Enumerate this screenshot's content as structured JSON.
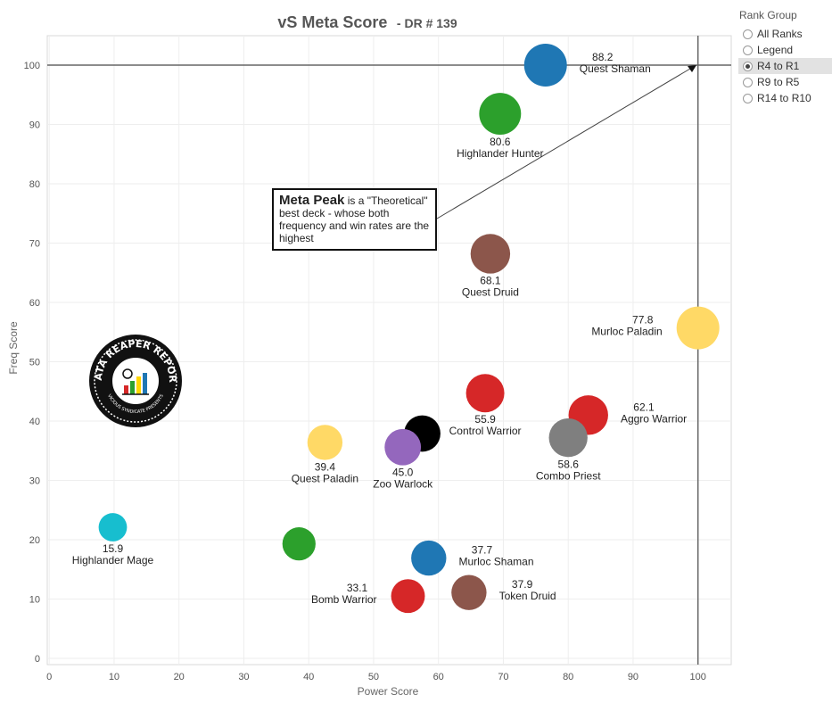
{
  "chart_data": {
    "type": "scatter",
    "title": "vS Meta Score",
    "subtitle": "- DR # 139",
    "xlabel": "Power Score",
    "ylabel": "Freq Score",
    "xlim": [
      0,
      105
    ],
    "ylim": [
      -1,
      105
    ],
    "x_ticks": [
      0,
      10,
      20,
      30,
      40,
      50,
      60,
      70,
      80,
      90,
      100
    ],
    "y_ticks": [
      0,
      10,
      20,
      30,
      40,
      50,
      60,
      70,
      80,
      90,
      100
    ],
    "grid": true,
    "reference_lines": {
      "x": 100,
      "y": 100
    },
    "points": [
      {
        "name": "Quest Shaman",
        "score": "88.2",
        "x": 76.5,
        "y": 100,
        "size": 1.0,
        "color": "#1f77b4",
        "label_pos": "right"
      },
      {
        "name": "Highlander Hunter",
        "score": "80.6",
        "x": 69.5,
        "y": 91.8,
        "size": 0.97,
        "color": "#2ca02c",
        "label_pos": "below"
      },
      {
        "name": "Quest Druid",
        "score": "68.1",
        "x": 68.0,
        "y": 68.2,
        "size": 0.9,
        "color": "#8c564b",
        "label_pos": "below"
      },
      {
        "name": "Murloc Paladin",
        "score": "77.8",
        "x": 100,
        "y": 55.7,
        "size": 1.0,
        "color": "#ffd966",
        "label_pos": "left"
      },
      {
        "name": "Control Warrior",
        "score": "55.9",
        "x": 67.2,
        "y": 44.7,
        "size": 0.86,
        "color": "#d62728",
        "label_pos": "below"
      },
      {
        "name": "Aggro Warrior",
        "score": "62.1",
        "x": 83.1,
        "y": 41.0,
        "size": 0.9,
        "color": "#d62728",
        "label_pos": "right"
      },
      {
        "name": "Combo Priest",
        "score": "58.6",
        "x": 80.0,
        "y": 37.2,
        "size": 0.87,
        "color": "#7f7f7f",
        "label_pos": "below"
      },
      {
        "name": "",
        "score": "",
        "x": 57.5,
        "y": 37.9,
        "size": 0.8,
        "color": "#000000",
        "label_pos": "none"
      },
      {
        "name": "Zoo Warlock",
        "score": "45.0",
        "x": 54.5,
        "y": 35.6,
        "size": 0.8,
        "color": "#9467bd",
        "label_pos": "below"
      },
      {
        "name": "Quest Paladin",
        "score": "39.4",
        "x": 42.5,
        "y": 36.4,
        "size": 0.76,
        "color": "#ffd966",
        "label_pos": "below"
      },
      {
        "name": "Highlander Mage",
        "score": "15.9",
        "x": 9.8,
        "y": 22.1,
        "size": 0.55,
        "color": "#17becf",
        "label_pos": "below"
      },
      {
        "name": "",
        "score": "",
        "x": 38.5,
        "y": 19.3,
        "size": 0.7,
        "color": "#2ca02c",
        "label_pos": "none"
      },
      {
        "name": "Murloc Shaman",
        "score": "37.7",
        "x": 58.5,
        "y": 16.9,
        "size": 0.76,
        "color": "#1f77b4",
        "label_pos": "right"
      },
      {
        "name": "Token Druid",
        "score": "37.9",
        "x": 64.7,
        "y": 11.1,
        "size": 0.76,
        "color": "#8c564b",
        "label_pos": "right"
      },
      {
        "name": "Bomb Warrior",
        "score": "33.1",
        "x": 55.3,
        "y": 10.5,
        "size": 0.72,
        "color": "#d62728",
        "label_pos": "left"
      }
    ]
  },
  "annotation": {
    "heading": "Meta Peak",
    "text": " is a \"Theoretical\" best deck - whose both frequency and win rates are the highest"
  },
  "legend": {
    "title": "Rank Group",
    "items": [
      {
        "label": "All Ranks",
        "selected": false
      },
      {
        "label": "Legend",
        "selected": false
      },
      {
        "label": "R4 to R1",
        "selected": true
      },
      {
        "label": "R9 to R5",
        "selected": false
      },
      {
        "label": "R14 to R10",
        "selected": false
      }
    ]
  },
  "logo": {
    "text_top": "DATA REAPER REPORT",
    "text_bottom": "VICIOUS SYNDICATE PRESENTS"
  }
}
